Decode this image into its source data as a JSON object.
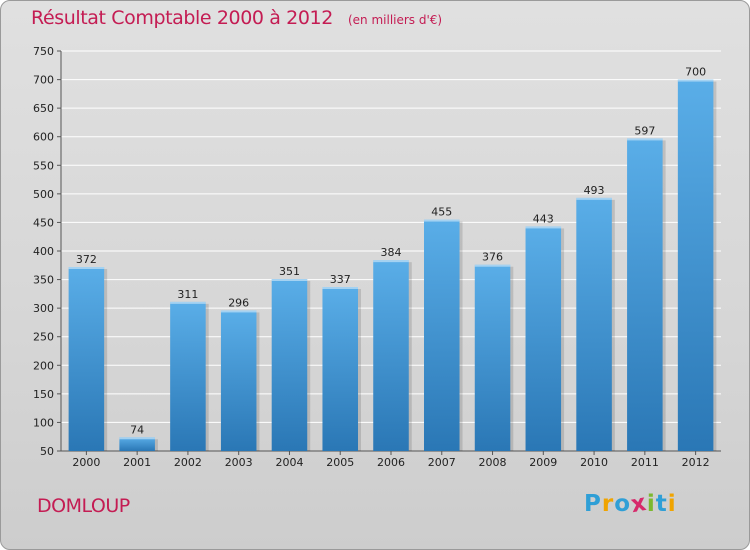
{
  "title": "Résultat Comptable 2000 à 2012",
  "subtitle": "(en milliers d'€)",
  "commune": "DOMLOUP",
  "logo": {
    "text": "Proxiti",
    "letters": [
      {
        "ch": "P",
        "color": "#2f9fd6"
      },
      {
        "ch": "r",
        "color": "#f0a400"
      },
      {
        "ch": "o",
        "color": "#2f9fd6"
      },
      {
        "ch": "x",
        "color": "#d62a6b"
      },
      {
        "ch": "i",
        "color": "#7cb82f"
      },
      {
        "ch": "t",
        "color": "#2f9fd6"
      },
      {
        "ch": "i",
        "color": "#f0a400"
      }
    ]
  },
  "colors": {
    "accent": "#c41c53",
    "bar_top": "#5aaee8",
    "bar_bottom": "#2a77b5"
  },
  "chart_data": {
    "type": "bar",
    "title": "Résultat Comptable 2000 à 2012",
    "subtitle": "(en milliers d'€)",
    "xlabel": "",
    "ylabel": "",
    "categories": [
      "2000",
      "2001",
      "2002",
      "2003",
      "2004",
      "2005",
      "2006",
      "2007",
      "2008",
      "2009",
      "2010",
      "2011",
      "2012"
    ],
    "values": [
      372,
      74,
      311,
      296,
      351,
      337,
      384,
      455,
      376,
      443,
      493,
      597,
      700
    ],
    "data_labels": [
      "372",
      "74",
      "311",
      "296",
      "351",
      "337",
      "384",
      "455",
      "376",
      "443",
      "493",
      "597",
      "700"
    ],
    "ylim": [
      50,
      750
    ],
    "yticks": [
      50,
      100,
      150,
      200,
      250,
      300,
      350,
      400,
      450,
      500,
      550,
      600,
      650,
      700,
      750
    ],
    "grid": true,
    "legend": "none"
  }
}
